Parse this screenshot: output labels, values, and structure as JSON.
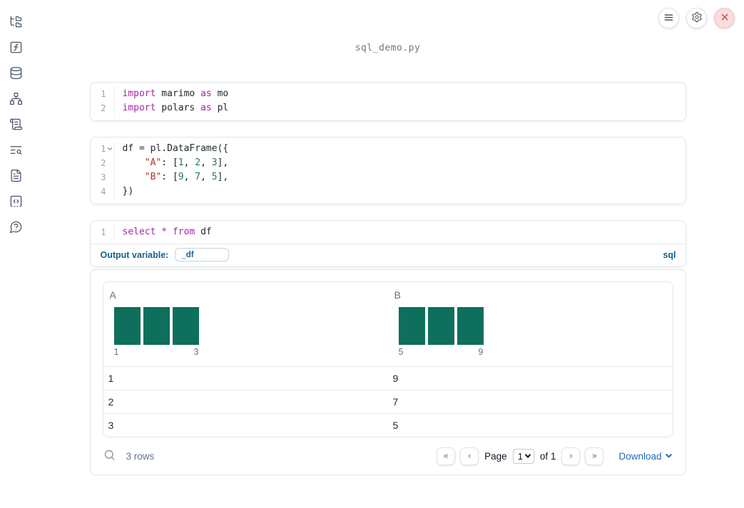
{
  "app": {
    "filename": "sql_demo.py"
  },
  "topbar": {
    "buttons": [
      {
        "name": "menu",
        "icon": "hamburger-menu-icon"
      },
      {
        "name": "settings",
        "icon": "gear-icon"
      },
      {
        "name": "shutdown",
        "icon": "close-x-icon"
      }
    ]
  },
  "sidebar": {
    "items": [
      {
        "icon": "file-tree-icon"
      },
      {
        "icon": "function-square-icon"
      },
      {
        "icon": "database-icon"
      },
      {
        "icon": "dependency-graph-icon"
      },
      {
        "icon": "scroll-log-icon"
      },
      {
        "icon": "text-search-icon"
      },
      {
        "icon": "document-icon"
      },
      {
        "icon": "code-snippet-icon"
      },
      {
        "icon": "help-question-icon"
      }
    ]
  },
  "cells": [
    {
      "name": "imports-cell",
      "lines": [
        {
          "num": "1",
          "fold": false,
          "tokens": [
            {
              "t": "kw",
              "v": "import"
            },
            {
              "t": "pl",
              "v": " marimo "
            },
            {
              "t": "kw",
              "v": "as"
            },
            {
              "t": "pl",
              "v": " mo"
            }
          ]
        },
        {
          "num": "2",
          "fold": false,
          "tokens": [
            {
              "t": "kw",
              "v": "import"
            },
            {
              "t": "pl",
              "v": " polars "
            },
            {
              "t": "kw",
              "v": "as"
            },
            {
              "t": "pl",
              "v": " pl"
            }
          ]
        }
      ]
    },
    {
      "name": "dataframe-cell",
      "lines": [
        {
          "num": "1",
          "fold": true,
          "tokens": [
            {
              "t": "pl",
              "v": "df = pl.DataFrame({"
            }
          ]
        },
        {
          "num": "2",
          "fold": false,
          "tokens": [
            {
              "t": "pl",
              "v": "    "
            },
            {
              "t": "str",
              "v": "\"A\""
            },
            {
              "t": "pl",
              "v": ": ["
            },
            {
              "t": "num",
              "v": "1"
            },
            {
              "t": "pl",
              "v": ", "
            },
            {
              "t": "num",
              "v": "2"
            },
            {
              "t": "pl",
              "v": ", "
            },
            {
              "t": "num",
              "v": "3"
            },
            {
              "t": "pl",
              "v": "],"
            }
          ]
        },
        {
          "num": "3",
          "fold": false,
          "tokens": [
            {
              "t": "pl",
              "v": "    "
            },
            {
              "t": "str",
              "v": "\"B\""
            },
            {
              "t": "pl",
              "v": ": ["
            },
            {
              "t": "num",
              "v": "9"
            },
            {
              "t": "pl",
              "v": ", "
            },
            {
              "t": "num",
              "v": "7"
            },
            {
              "t": "pl",
              "v": ", "
            },
            {
              "t": "num",
              "v": "5"
            },
            {
              "t": "pl",
              "v": "],"
            }
          ]
        },
        {
          "num": "4",
          "fold": false,
          "tokens": [
            {
              "t": "pl",
              "v": "})"
            }
          ]
        }
      ]
    }
  ],
  "sql_cell": {
    "line": {
      "num": "1",
      "tokens": [
        {
          "t": "kw",
          "v": "select"
        },
        {
          "t": "pl",
          "v": " "
        },
        {
          "t": "kw",
          "v": "*"
        },
        {
          "t": "pl",
          "v": " "
        },
        {
          "t": "kw",
          "v": "from"
        },
        {
          "t": "pl",
          "v": " df"
        }
      ]
    },
    "output_variable_label": "Output variable:",
    "output_variable_value": "_df",
    "language_label": "sql"
  },
  "table": {
    "columns": [
      {
        "name": "A",
        "histogram": {
          "type": "bar",
          "values": [
            1,
            1,
            1
          ],
          "min_label": "1",
          "max_label": "3"
        }
      },
      {
        "name": "B",
        "histogram": {
          "type": "bar",
          "values": [
            1,
            1,
            1
          ],
          "min_label": "5",
          "max_label": "9"
        }
      }
    ],
    "rows": [
      [
        "1",
        "9"
      ],
      [
        "2",
        "7"
      ],
      [
        "3",
        "5"
      ]
    ],
    "footer": {
      "row_count": "3 rows",
      "page_label": "Page",
      "page_value": "1",
      "page_total_label": "of 1",
      "first_page_icon": "«",
      "prev_page_icon": "‹",
      "next_page_icon": "›",
      "last_page_icon": "»",
      "download_label": "Download"
    }
  },
  "colors": {
    "histogram_bar": "#0e6f5c",
    "accent_blue": "#15608f",
    "link_blue": "#2169c4",
    "keyword": "#a626a4",
    "string": "#b5312c",
    "number": "#1e7e45",
    "close_button_red": "#d05b5b"
  }
}
